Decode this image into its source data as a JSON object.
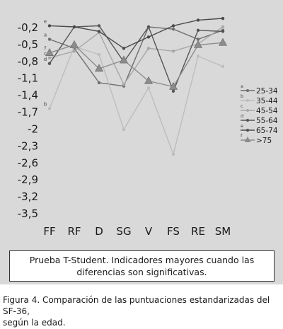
{
  "chart_data": {
    "type": "line",
    "categories": [
      "FF",
      "RF",
      "D",
      "SG",
      "V",
      "FS",
      "RE",
      "SM"
    ],
    "yticks": [
      "-0,2",
      "-0,5",
      "-0,8",
      "-1,1",
      "-1,4",
      "-1,7",
      "-2",
      "-2,3",
      "-2,6",
      "-2,9",
      "-3,2",
      "-3,5"
    ],
    "ylim": [
      -3.5,
      0
    ],
    "grid": false,
    "legend_position": "right",
    "series": [
      {
        "name": "25-34",
        "marker_letter": "a",
        "marker": "dot",
        "color": "#6e6e6e",
        "values": [
          -0.42,
          -0.58,
          -1.19,
          -1.25,
          -0.2,
          -0.24,
          -0.42,
          -0.26
        ]
      },
      {
        "name": "35-44",
        "marker_letter": "b",
        "marker": "dot",
        "color": "#bdbdbd",
        "values": [
          -1.65,
          -0.55,
          -0.69,
          -2.02,
          -1.28,
          -2.46,
          -0.72,
          -0.9
        ]
      },
      {
        "name": "45-54",
        "marker_letter": "c",
        "marker": "dot",
        "color": "#a8a8a8",
        "values": [
          -0.75,
          -0.63,
          -0.3,
          -1.22,
          -0.58,
          -0.63,
          -0.5,
          -0.2
        ]
      },
      {
        "name": "55-64",
        "marker_letter": "d",
        "marker": "dot",
        "color": "#555555",
        "values": [
          -0.85,
          -0.2,
          -0.18,
          -0.82,
          -0.2,
          -1.34,
          -0.26,
          -0.28
        ]
      },
      {
        "name": "65-74",
        "marker_letter": "e",
        "marker": "dot",
        "color": "#4a4a4a",
        "values": [
          -0.18,
          -0.2,
          -0.28,
          -0.58,
          -0.38,
          -0.18,
          -0.08,
          -0.05
        ]
      },
      {
        "name": ">75",
        "marker_letter": "f",
        "marker": "triangle",
        "color": "#8c8c8c",
        "values": [
          -0.66,
          -0.52,
          -0.94,
          -0.79,
          -1.16,
          -1.26,
          -0.52,
          -0.48
        ]
      }
    ]
  },
  "note": {
    "line1": "Prueba T-Student. Indicadores mayores cuando las",
    "line2": "diferencias son significativas."
  },
  "caption": {
    "label": "Figura 4.",
    "text_line1": " Comparación de las puntuaciones estandarizadas del SF-36,",
    "text_line2": "según la edad."
  }
}
